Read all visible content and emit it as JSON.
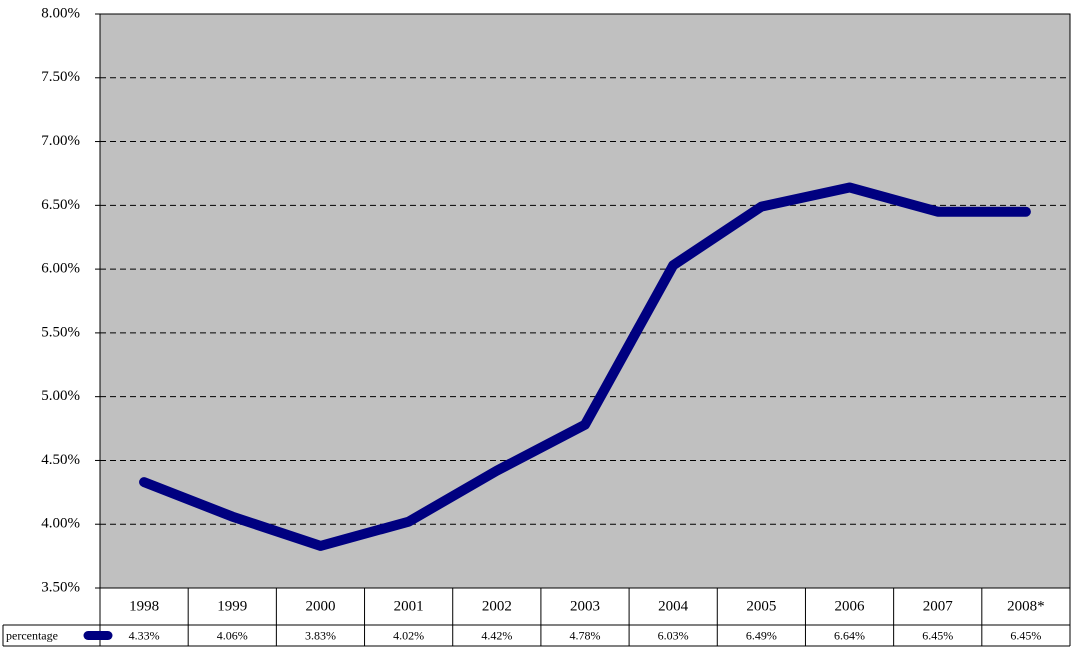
{
  "chart_data": {
    "type": "line",
    "categories": [
      "1998",
      "1999",
      "2000",
      "2001",
      "2002",
      "2003",
      "2004",
      "2005",
      "2006",
      "2007",
      "2008*"
    ],
    "series": [
      {
        "name": "percentage",
        "color": "#000080",
        "values": [
          4.33,
          4.06,
          3.83,
          4.02,
          4.42,
          4.78,
          6.03,
          6.49,
          6.64,
          6.45,
          6.45
        ],
        "value_labels": [
          "4.33%",
          "4.06%",
          "3.83%",
          "4.02%",
          "4.42%",
          "4.78%",
          "6.03%",
          "6.49%",
          "6.64%",
          "6.45%",
          "6.45%"
        ]
      }
    ],
    "ylim": [
      3.5,
      8
    ],
    "yticks": [
      {
        "value": 3.5,
        "label": "3.50%"
      },
      {
        "value": 4,
        "label": "4.00%"
      },
      {
        "value": 4.5,
        "label": "4.50%"
      },
      {
        "value": 5,
        "label": "5.00%"
      },
      {
        "value": 5.5,
        "label": "5.50%"
      },
      {
        "value": 6,
        "label": "6.00%"
      },
      {
        "value": 6.5,
        "label": "6.50%"
      },
      {
        "value": 7,
        "label": "7.00%"
      },
      {
        "value": 7.5,
        "label": "7.50%"
      },
      {
        "value": 8,
        "label": "8.00%"
      }
    ],
    "grid": true
  }
}
